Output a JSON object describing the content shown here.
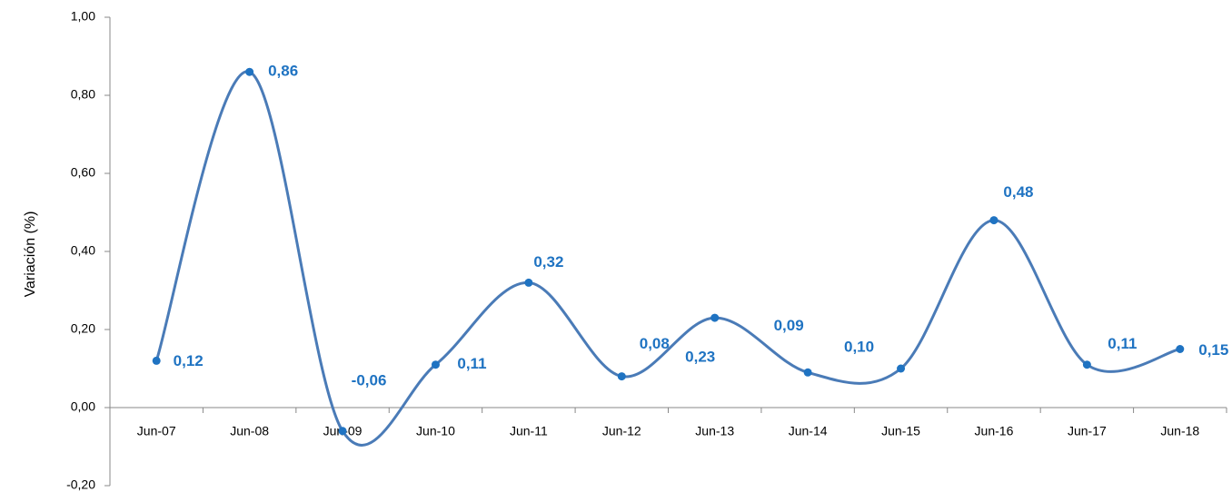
{
  "chart_data": {
    "type": "line",
    "y_label": "Variación (%)",
    "categories": [
      "Jun-07",
      "Jun-08",
      "Jun-09",
      "Jun-10",
      "Jun-11",
      "Jun-12",
      "Jun-13",
      "Jun-14",
      "Jun-15",
      "Jun-16",
      "Jun-17",
      "Jun-18"
    ],
    "series": [
      {
        "color": "#4a7bb7",
        "label_color": "#1f73c2",
        "smooth": true,
        "values": [
          0.12,
          0.86,
          -0.06,
          0.11,
          0.32,
          0.08,
          0.23,
          0.09,
          0.1,
          0.48,
          0.11,
          0.15
        ],
        "value_labels": [
          "0,12",
          "0,86",
          "-0,06",
          "0,11",
          "0,32",
          "0,08",
          "0,23",
          "0,09",
          "0,10",
          "0,48",
          "0,11",
          "0,15"
        ]
      }
    ],
    "ylim": [
      -0.2,
      1.0
    ],
    "yticks": [
      {
        "value": -0.2,
        "label": "-0,20"
      },
      {
        "value": 0,
        "label": "0,00"
      },
      {
        "value": 0.2,
        "label": "0,20"
      },
      {
        "value": 0.4,
        "label": "0,40"
      },
      {
        "value": 0.6,
        "label": "0,60"
      },
      {
        "value": 0.8,
        "label": "0,80"
      },
      {
        "value": 1.0,
        "label": "1,00"
      }
    ],
    "grid": false
  }
}
